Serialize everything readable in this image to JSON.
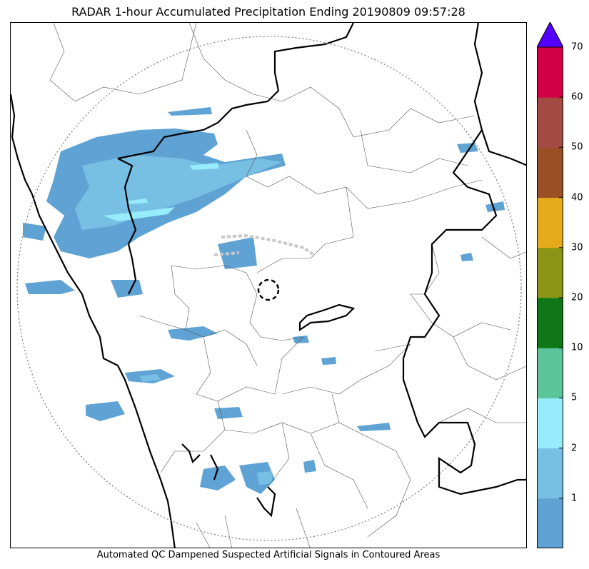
{
  "title": "RADAR 1-hour Accumulated Precipitation Ending 20190809 09:57:28",
  "caption": "Automated QC Dampened Suspected Artificial Signals in Contoured Areas",
  "colorbar": {
    "bins": [
      {
        "label": "",
        "color": "#5fa3d4"
      },
      {
        "label": "1",
        "color": "#78bfe4"
      },
      {
        "label": "2",
        "color": "#96ecfb"
      },
      {
        "label": "5",
        "color": "#5bc49a"
      },
      {
        "label": "10",
        "color": "#0f7718"
      },
      {
        "label": "20",
        "color": "#8a9517"
      },
      {
        "label": "30",
        "color": "#e5a91b"
      },
      {
        "label": "40",
        "color": "#9a4f24"
      },
      {
        "label": "50",
        "color": "#a44a45"
      },
      {
        "label": "60",
        "color": "#d40047"
      },
      {
        "label": "70",
        "color": "#5500ff"
      }
    ],
    "overflow_color": "#5500ff"
  }
}
